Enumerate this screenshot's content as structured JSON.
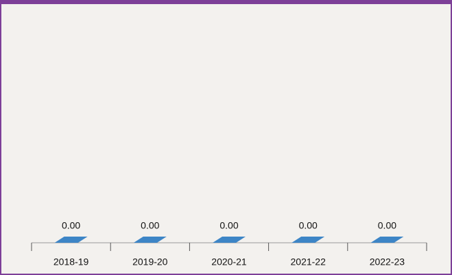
{
  "chart_data": {
    "type": "bar",
    "categories": [
      "2018-19",
      "2019-20",
      "2020-21",
      "2021-22",
      "2022-23"
    ],
    "values": [
      0,
      0,
      0,
      0,
      0
    ],
    "value_labels": [
      "0.00",
      "0.00",
      "0.00",
      "0.00",
      "0.00"
    ],
    "color": "#3d85c6"
  }
}
